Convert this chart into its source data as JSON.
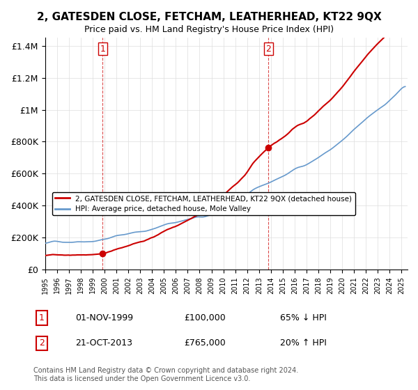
{
  "title": "2, GATESDEN CLOSE, FETCHAM, LEATHERHEAD, KT22 9QX",
  "subtitle": "Price paid vs. HM Land Registry's House Price Index (HPI)",
  "xlabel": "",
  "ylabel": "",
  "ylim": [
    0,
    1450000
  ],
  "xlim_start": 1995.0,
  "xlim_end": 2025.5,
  "yticks": [
    0,
    200000,
    400000,
    600000,
    800000,
    1000000,
    1200000,
    1400000
  ],
  "ytick_labels": [
    "£0",
    "£200K",
    "£400K",
    "£600K",
    "£800K",
    "£1M",
    "£1.2M",
    "£1.4M"
  ],
  "sale1_year": 1999.833,
  "sale1_price": 100000,
  "sale2_year": 2013.8,
  "sale2_price": 765000,
  "sale1_label": "1",
  "sale2_label": "2",
  "sale1_vline_color": "#cc0000",
  "sale2_vline_color": "#cc0000",
  "hpi_line_color": "#6699cc",
  "sale_line_color": "#cc0000",
  "sale_dot_color": "#cc0000",
  "legend_label1": "2, GATESDEN CLOSE, FETCHAM, LEATHERHEAD, KT22 9QX (detached house)",
  "legend_label2": "HPI: Average price, detached house, Mole Valley",
  "annotation1_date": "01-NOV-1999",
  "annotation1_price": "£100,000",
  "annotation1_hpi": "65% ↓ HPI",
  "annotation2_date": "21-OCT-2013",
  "annotation2_price": "£765,000",
  "annotation2_hpi": "20% ↑ HPI",
  "footnote": "Contains HM Land Registry data © Crown copyright and database right 2024.\nThis data is licensed under the Open Government Licence v3.0.",
  "background_color": "#ffffff",
  "grid_color": "#dddddd"
}
